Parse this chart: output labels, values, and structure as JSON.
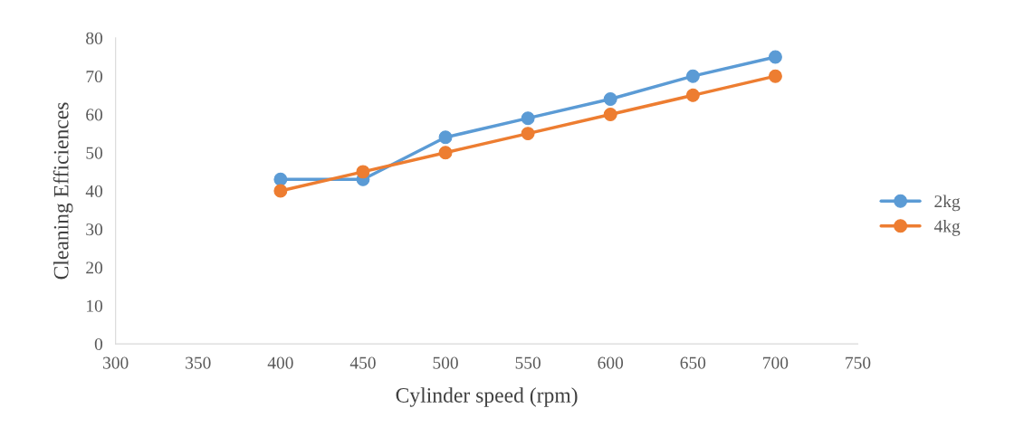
{
  "chart_data": {
    "type": "line",
    "xlabel": "Cylinder speed (rpm)",
    "ylabel": "Cleaning Efficiences",
    "x": [
      400,
      450,
      500,
      550,
      600,
      650,
      700
    ],
    "series": [
      {
        "name": "2kg",
        "color": "#5b9bd5",
        "values": [
          43,
          43,
          54,
          59,
          64,
          70,
          75
        ]
      },
      {
        "name": "4kg",
        "color": "#ed7d31",
        "values": [
          40,
          45,
          50,
          55,
          60,
          65,
          70
        ]
      }
    ],
    "xlim": [
      300,
      750
    ],
    "xticks": [
      300,
      350,
      400,
      450,
      500,
      550,
      600,
      650,
      700,
      750
    ],
    "ylim": [
      0,
      80
    ],
    "yticks": [
      0,
      10,
      20,
      30,
      40,
      50,
      60,
      70,
      80
    ],
    "grid": false,
    "legend": "right",
    "marker": "circle",
    "line_style": "solid"
  }
}
